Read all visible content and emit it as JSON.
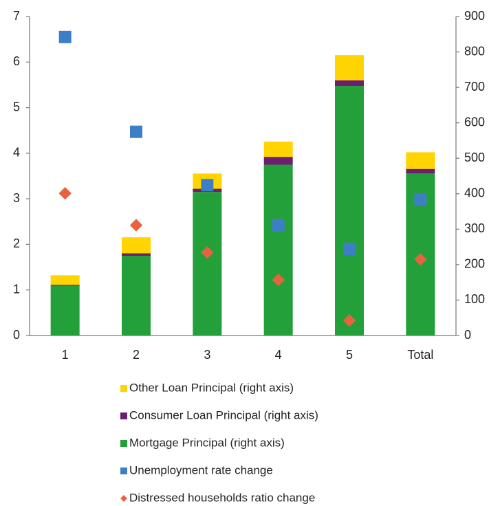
{
  "chart_data": {
    "type": "bar",
    "stacked": true,
    "categories": [
      "1",
      "2",
      "3",
      "4",
      "5",
      "Total"
    ],
    "ylim": [
      0,
      7
    ],
    "yticks": [
      0,
      1,
      2,
      3,
      4,
      5,
      6,
      7
    ],
    "y2lim": [
      0,
      900
    ],
    "y2ticks": [
      0,
      100,
      200,
      300,
      400,
      500,
      600,
      700,
      800,
      900
    ],
    "series": [
      {
        "name": "Other Loan Principal (right axis)",
        "type": "bar",
        "axis": "y2",
        "color": "#ffd400",
        "values": [
          27,
          45,
          43,
          43,
          71,
          47
        ]
      },
      {
        "name": "Consumer Loan Principal (right axis)",
        "type": "bar",
        "axis": "y2",
        "color": "#6b1f6e",
        "values": [
          3,
          7,
          9,
          22,
          16,
          13
        ]
      },
      {
        "name": "Mortgage Principal (right axis)",
        "type": "bar",
        "axis": "y2",
        "color": "#23a03a",
        "values": [
          140,
          225,
          405,
          482,
          704,
          457
        ]
      },
      {
        "name": "Unemployment rate change",
        "type": "scatter",
        "marker": "square",
        "color": "#3d7fc6",
        "values": [
          6.55,
          4.47,
          3.3,
          2.42,
          1.9,
          2.98
        ]
      },
      {
        "name": "Distressed households ratio change",
        "type": "scatter",
        "marker": "diamond",
        "color": "#e8623e",
        "values": [
          3.12,
          2.42,
          1.82,
          1.22,
          0.33,
          1.67
        ]
      }
    ]
  }
}
